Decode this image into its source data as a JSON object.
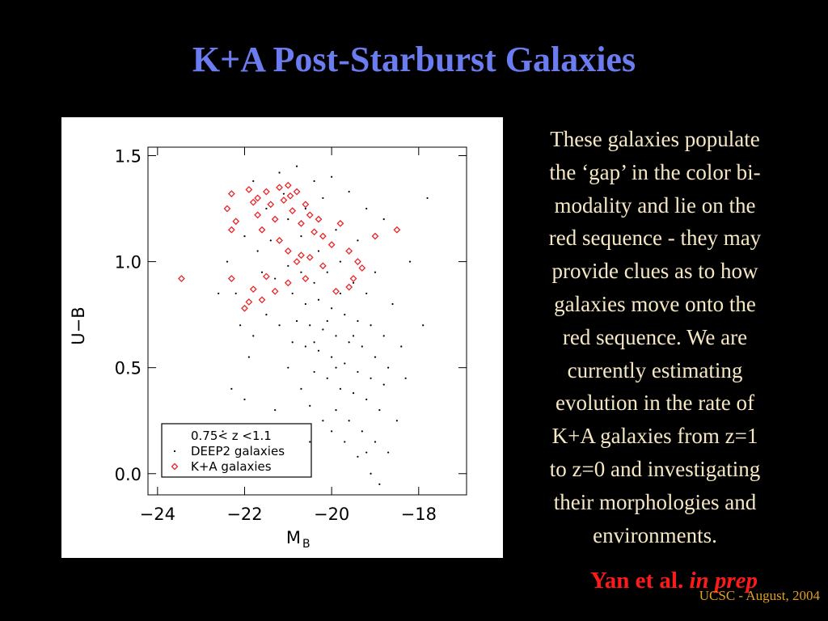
{
  "slide": {
    "title": "K+A Post-Starburst Galaxies",
    "body_lines": [
      "These galaxies populate",
      "the ‘gap’ in the color bi-",
      "modality and lie on the",
      "red sequence - they may",
      "provide clues as to how",
      "galaxies move onto the",
      "red sequence.  We are",
      "currently estimating",
      "evolution in the rate of",
      "K+A galaxies from z=1",
      "to z=0 and investigating",
      "their morphologies and",
      "environments."
    ],
    "citation": "Yan et al.",
    "citation_note": "in prep",
    "footer": "UCSC - August, 2004"
  },
  "chart_data": {
    "type": "scatter",
    "x_label": {
      "main": "M",
      "subscript": "B"
    },
    "y_label": "U−B",
    "annotation": "0.75<  z  <1.1",
    "xlim": [
      -24.22,
      -16.9
    ],
    "ylim": [
      -0.1,
      1.54
    ],
    "xticks": [
      {
        "value": -24,
        "label": "−24"
      },
      {
        "value": -22,
        "label": "−22"
      },
      {
        "value": -20,
        "label": "−20"
      },
      {
        "value": -18,
        "label": "−18"
      }
    ],
    "yticks": [
      {
        "value": 0,
        "label": "0.0"
      },
      0.5,
      {
        "value": 1,
        "label": "1.0"
      },
      1.5
    ],
    "series": [
      {
        "name": "DEEP2 galaxies",
        "color": "#000000",
        "marker": "dot",
        "x": [
          -21.8,
          -21.2,
          -20.8,
          -20.4,
          -20.0,
          -19.6,
          -19.2,
          -18.8,
          -20.2,
          -20.6,
          -21.0,
          -21.4,
          -21.7,
          -22.0,
          -22.4,
          -22.6,
          -22.1,
          -21.9,
          -22.3,
          -21.6,
          -21.3,
          -21.0,
          -20.7,
          -20.4,
          -20.1,
          -19.8,
          -19.5,
          -19.2,
          -20.9,
          -20.6,
          -20.3,
          -20.0,
          -19.7,
          -19.4,
          -19.1,
          -18.8,
          -20.8,
          -20.5,
          -20.2,
          -19.9,
          -19.6,
          -19.3,
          -19.0,
          -18.7,
          -20.6,
          -20.3,
          -20.0,
          -19.7,
          -19.4,
          -19.1,
          -18.8,
          -20.4,
          -20.1,
          -19.8,
          -19.5,
          -19.2,
          -18.9,
          -19.9,
          -19.6,
          -19.3,
          -19.0,
          -19.4,
          -19.1,
          -18.9,
          -19.2,
          -20.9,
          -21.2,
          -21.0,
          -20.7,
          -20.5,
          -20.2,
          -19.7,
          -21.5,
          -21.8,
          -22.2,
          -20.3,
          -19.9,
          -19.4,
          -20.7,
          -21.1,
          -21.5,
          -19.0,
          -18.6,
          -18.4,
          -18.3,
          -18.5,
          -18.7,
          -20.0,
          -20.5,
          -21.3,
          -22.5,
          -22.0,
          -17.9,
          -18.2,
          -17.8,
          -19.8,
          -20.1,
          -19.5,
          -19.9,
          -20.4
        ],
        "values": [
          1.38,
          1.42,
          1.45,
          1.38,
          1.4,
          1.33,
          1.25,
          1.2,
          1.3,
          1.25,
          1.2,
          1.1,
          1.05,
          1.12,
          1.0,
          0.85,
          0.7,
          0.55,
          0.4,
          0.95,
          0.92,
          0.98,
          0.95,
          0.9,
          0.95,
          1.0,
          0.9,
          0.85,
          0.85,
          0.8,
          0.82,
          0.78,
          0.75,
          0.72,
          0.7,
          0.65,
          0.72,
          0.7,
          0.68,
          0.65,
          0.62,
          0.6,
          0.55,
          0.5,
          0.6,
          0.58,
          0.55,
          0.52,
          0.48,
          0.45,
          0.42,
          0.48,
          0.45,
          0.4,
          0.38,
          0.35,
          0.3,
          0.3,
          0.25,
          0.2,
          0.15,
          0.08,
          0.0,
          -0.05,
          0.1,
          0.62,
          0.7,
          0.5,
          0.4,
          0.32,
          0.25,
          0.15,
          0.75,
          0.65,
          0.85,
          1.05,
          1.15,
          1.1,
          1.12,
          1.32,
          1.25,
          0.95,
          0.8,
          0.6,
          0.45,
          0.25,
          0.1,
          0.2,
          0.15,
          0.3,
          0.2,
          0.35,
          0.7,
          1.0,
          1.3,
          0.85,
          0.72,
          0.65,
          0.5,
          0.62
        ]
      },
      {
        "name": "K+A galaxies",
        "color": "#e8262a",
        "marker": "diamond",
        "x": [
          -23.45,
          -22.3,
          -22.4,
          -22.2,
          -21.9,
          -21.8,
          -21.7,
          -21.6,
          -21.5,
          -21.4,
          -21.3,
          -21.2,
          -21.1,
          -21.0,
          -20.95,
          -20.9,
          -20.8,
          -20.7,
          -20.6,
          -20.5,
          -20.4,
          -20.3,
          -20.2,
          -20.0,
          -19.8,
          -19.6,
          -19.5,
          -19.4,
          -19.3,
          -19.6,
          -19.9,
          -20.5,
          -20.7,
          -20.8,
          -21.0,
          -21.2,
          -21.5,
          -21.3,
          -21.6,
          -21.8,
          -22.0,
          -21.9,
          -22.3,
          -19.0,
          -18.5,
          -20.6,
          -21.0,
          -20.2,
          -22.3,
          -21.7
        ],
        "values": [
          0.92,
          1.32,
          1.25,
          1.19,
          1.34,
          1.28,
          1.22,
          1.15,
          1.33,
          1.27,
          1.2,
          1.35,
          1.29,
          1.36,
          1.31,
          1.24,
          1.33,
          1.18,
          1.27,
          1.22,
          1.14,
          1.2,
          1.12,
          1.08,
          1.18,
          1.05,
          0.92,
          1.0,
          0.97,
          0.88,
          0.86,
          1.02,
          1.03,
          1.0,
          1.05,
          1.1,
          0.93,
          0.86,
          0.82,
          0.87,
          0.78,
          0.81,
          0.92,
          1.12,
          1.15,
          0.92,
          0.9,
          0.98,
          1.15,
          1.3
        ]
      }
    ]
  }
}
